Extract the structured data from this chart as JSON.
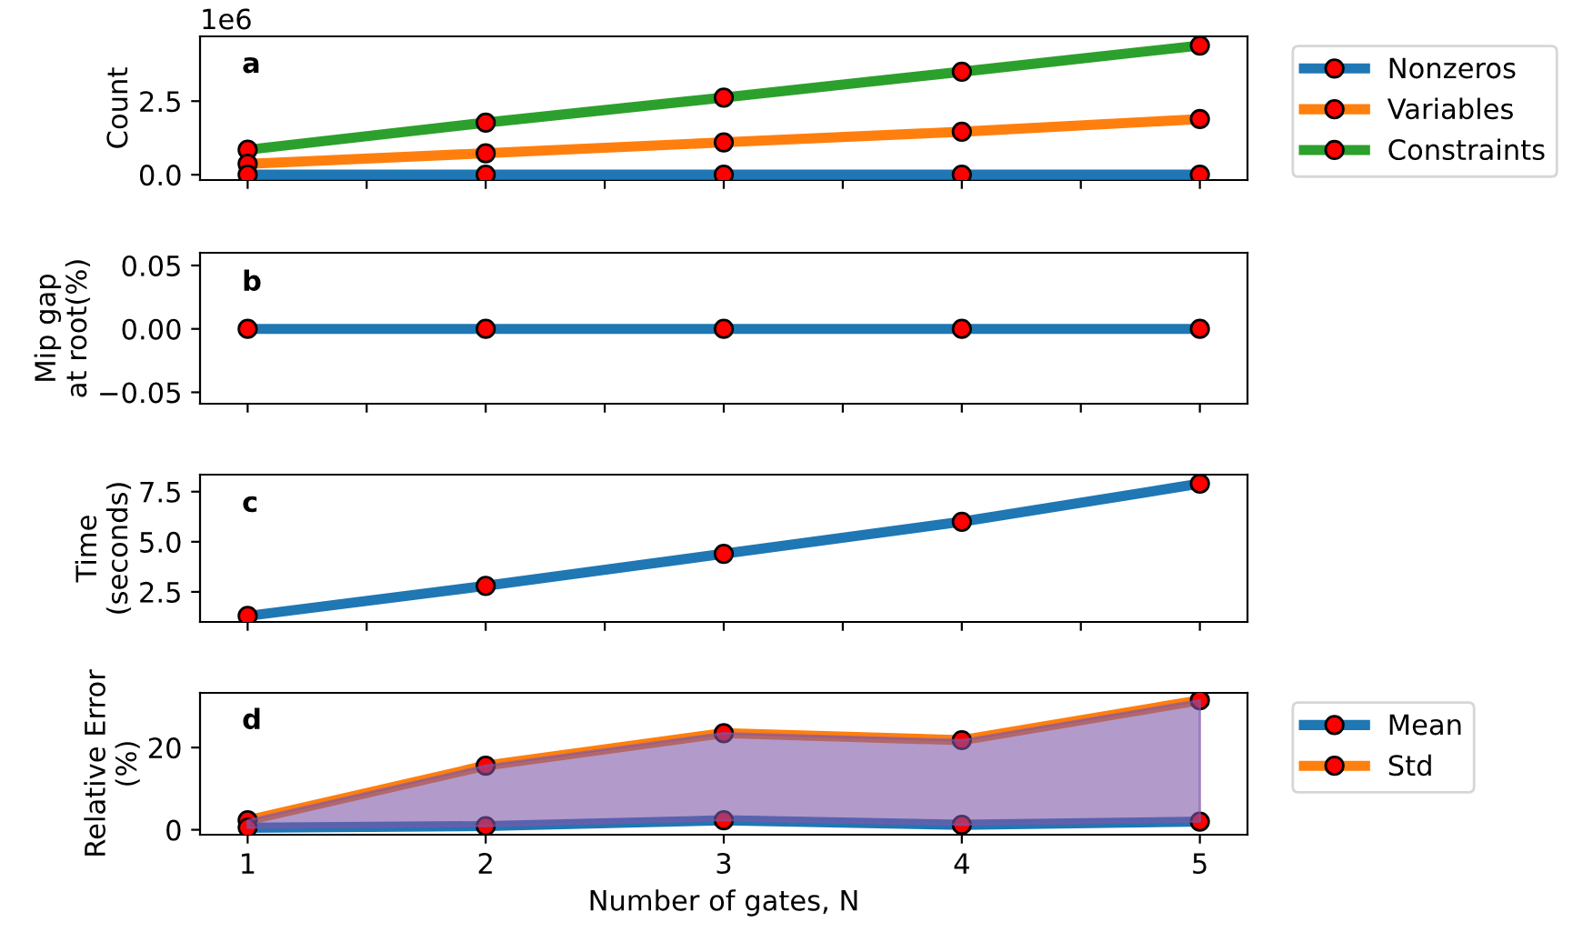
{
  "chart_data": [
    {
      "type": "line",
      "x": [
        1,
        2,
        3,
        4,
        5
      ],
      "xlim": [
        0.8,
        5.2
      ],
      "xticks": [
        1,
        1.5,
        2,
        2.5,
        3,
        3.5,
        4,
        4.5,
        5
      ],
      "ylim": [
        -0.18,
        4.7
      ],
      "yticks": [
        {
          "value": 0,
          "label": "0.0"
        },
        {
          "value": 2.5,
          "label": "2.5"
        }
      ],
      "ylabel": "Count",
      "tick_labels": "y",
      "marker": "circle",
      "legend": "right",
      "grid": false,
      "annotations": [
        "a",
        "1e6"
      ],
      "series": [
        {
          "name": "Nonzeros",
          "color": "#1f77b4",
          "values": [
            0,
            0,
            0,
            0,
            0
          ]
        },
        {
          "name": "Variables",
          "color": "#ff7f0e",
          "values": [
            0.37,
            0.73,
            1.1,
            1.46,
            1.89
          ]
        },
        {
          "name": "Constraints",
          "color": "#2ca02c",
          "values": [
            0.85,
            1.77,
            2.62,
            3.5,
            4.39
          ]
        }
      ]
    },
    {
      "type": "line",
      "x": [
        1,
        2,
        3,
        4,
        5
      ],
      "xlim": [
        0.8,
        5.2
      ],
      "xticks": [
        1,
        1.5,
        2,
        2.5,
        3,
        3.5,
        4,
        4.5,
        5
      ],
      "ylim": [
        -0.059,
        0.06
      ],
      "yticks": [
        {
          "value": -0.05,
          "label": "−0.05"
        },
        {
          "value": 0,
          "label": "0.00"
        },
        {
          "value": 0.05,
          "label": "0.05"
        }
      ],
      "ylabel": "Mip gap\nat root(%)",
      "tick_labels": "y",
      "marker": "circle",
      "grid": false,
      "annotations": [
        "b"
      ],
      "series": [
        {
          "color": "#1f77b4",
          "values": [
            0,
            0,
            0,
            0,
            0
          ]
        }
      ]
    },
    {
      "type": "line",
      "x": [
        1,
        2,
        3,
        4,
        5
      ],
      "xlim": [
        0.8,
        5.2
      ],
      "xticks": [
        1,
        1.5,
        2,
        2.5,
        3,
        3.5,
        4,
        4.5,
        5
      ],
      "ylim": [
        1.0,
        8.35
      ],
      "yticks": [
        {
          "value": 2.5,
          "label": "2.5"
        },
        {
          "value": 5,
          "label": "5.0"
        },
        {
          "value": 7.5,
          "label": "7.5"
        }
      ],
      "ylabel": "Time\n(seconds)",
      "tick_labels": "y",
      "marker": "circle",
      "grid": false,
      "annotations": [
        "c"
      ],
      "series": [
        {
          "color": "#1f77b4",
          "values": [
            1.3,
            2.8,
            4.4,
            6.0,
            7.9
          ]
        }
      ]
    },
    {
      "type": "line",
      "x": [
        1,
        2,
        3,
        4,
        5
      ],
      "xlim": [
        0.8,
        5.2
      ],
      "xticks": [
        1,
        2,
        3,
        4,
        5
      ],
      "ylim": [
        -1.2,
        33.3
      ],
      "yticks": [
        0,
        20
      ],
      "ylabel": "Relative Error\n(%)",
      "xlabel": "Number of gates, N",
      "marker": "circle",
      "legend": "right",
      "grid": false,
      "annotations": [
        "d"
      ],
      "series": [
        {
          "name": "Mean",
          "color": "#1f77b4",
          "values": [
            0.5,
            0.9,
            2.3,
            1.2,
            2.0
          ]
        },
        {
          "name": "Std",
          "color": "#ff7f0e",
          "values": [
            2.3,
            15.6,
            23.5,
            21.8,
            31.5
          ],
          "lower": [
            0.5,
            0.9,
            2.3,
            1.2,
            2.0
          ],
          "upper": [
            2.3,
            15.6,
            23.5,
            21.8,
            31.5
          ]
        }
      ]
    }
  ]
}
